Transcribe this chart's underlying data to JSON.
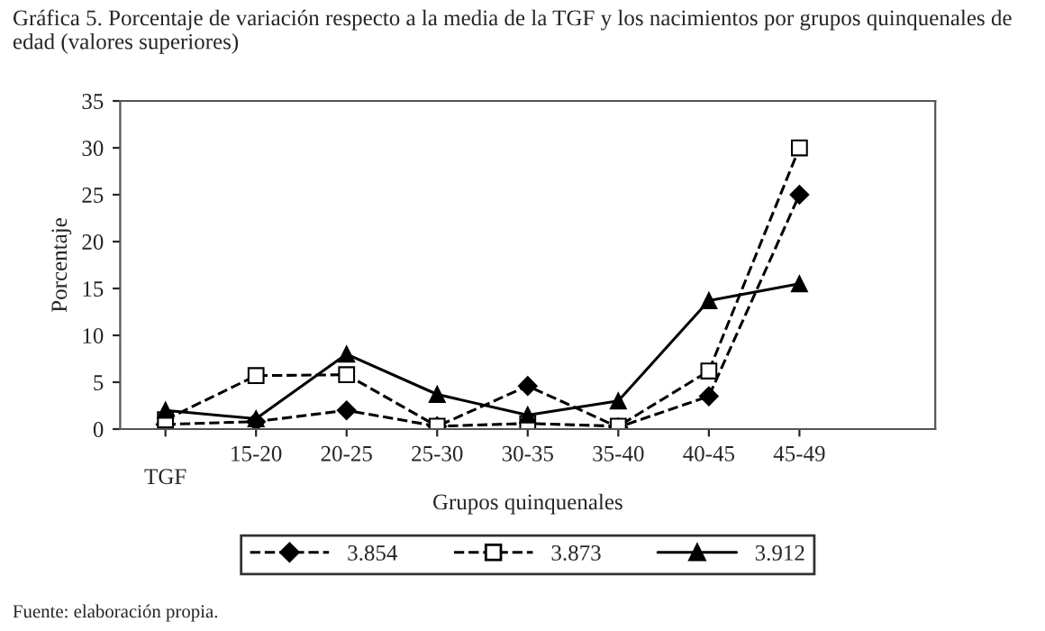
{
  "chart_data": {
    "type": "line",
    "title": "Gráfica 5. Porcentaje de variación respecto a la media de la TGF y los nacimientos por grupos quinquenales de edad (valores superiores)",
    "xlabel": "Grupos quinquenales",
    "ylabel": "Porcentaje",
    "categories": [
      "TGF",
      "15-20",
      "20-25",
      "25-30",
      "30-35",
      "35-40",
      "40-45",
      "45-49"
    ],
    "series": [
      {
        "name": "3.854",
        "color": "#000000",
        "marker": "diamond",
        "line_style": "dashed",
        "values": [
          0.5,
          0.8,
          2.0,
          0.3,
          4.6,
          0.2,
          3.5,
          25
        ]
      },
      {
        "name": "3.873",
        "color": "#000000",
        "marker": "square",
        "line_style": "dashed",
        "values": [
          1.0,
          5.7,
          5.8,
          0.3,
          0.6,
          0.3,
          6.2,
          30
        ]
      },
      {
        "name": "3.912",
        "color": "#000000",
        "marker": "triangle",
        "line_style": "solid",
        "values": [
          2.0,
          1.1,
          8.0,
          3.7,
          1.5,
          3.0,
          13.7,
          15.5
        ]
      }
    ],
    "ylim": [
      0,
      35
    ],
    "yticks": [
      0,
      5,
      10,
      15,
      20,
      25,
      30,
      35
    ],
    "grid": false,
    "legend": "bottom",
    "annotations": [
      "Fuente: elaboración propia."
    ]
  }
}
